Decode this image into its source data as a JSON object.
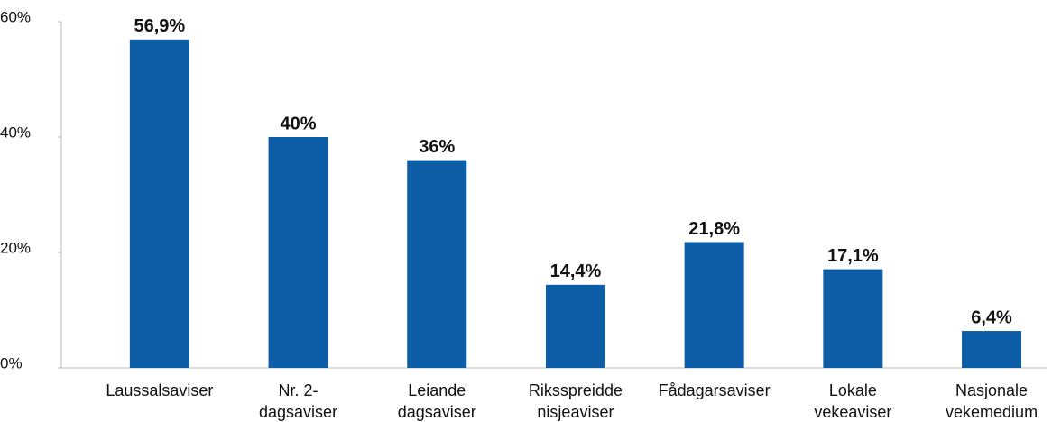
{
  "chart_data": {
    "type": "bar",
    "categories": [
      "Laussalsaviser",
      "Nr. 2-dagsaviser",
      "Leiande dagsaviser",
      "Riksspreidde nisjeaviser",
      "Fådagarsaviser",
      "Lokale vekeaviser",
      "Nasjonale vekemedium"
    ],
    "values": [
      56.9,
      40,
      36,
      14.4,
      21.8,
      17.1,
      6.4
    ],
    "value_labels": [
      "56,9%",
      "40%",
      "36%",
      "14,4%",
      "21,8%",
      "17,1%",
      "6,4%"
    ],
    "color": "#0d5ea6",
    "ylim": [
      0,
      60
    ],
    "yticks": [
      {
        "value": 0,
        "label": "0%"
      },
      {
        "value": 20,
        "label": "20%"
      },
      {
        "value": 40,
        "label": "40%"
      },
      {
        "value": 60,
        "label": "60%"
      }
    ],
    "grid": false
  }
}
